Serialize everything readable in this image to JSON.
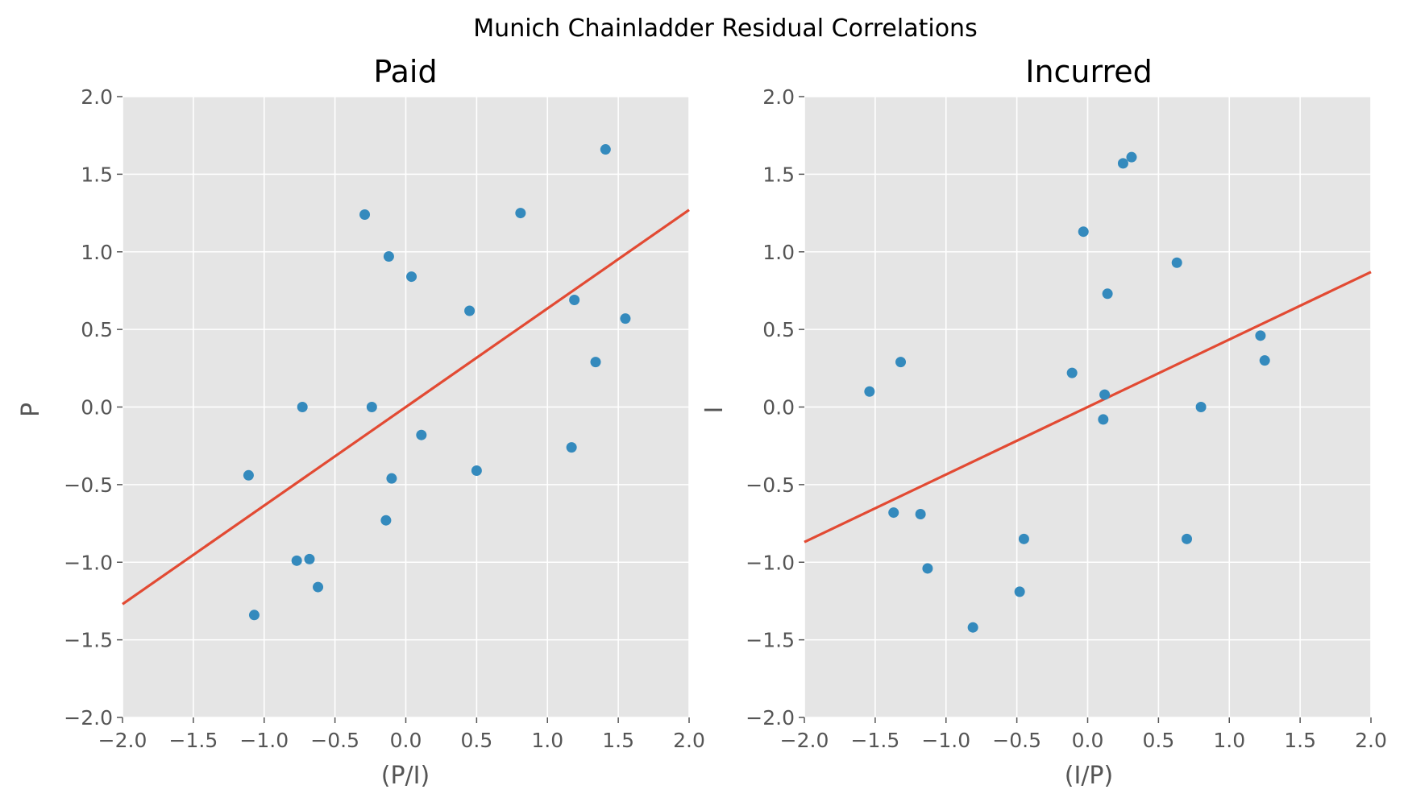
{
  "figure": {
    "title": "Munich Chainladder Residual Correlations"
  },
  "style": {
    "axes_bg": "#E5E5E5",
    "grid_color": "#FFFFFF",
    "point_color": "#348ABD",
    "line_color": "#E24A33",
    "tick_color": "#555555"
  },
  "chart_data": [
    {
      "type": "scatter",
      "title": "Paid",
      "xlabel": "(P/I)",
      "ylabel": "P",
      "xlim": [
        -2.0,
        2.0
      ],
      "ylim": [
        -2.0,
        2.0
      ],
      "grid": true,
      "xticks": [
        "−2.0",
        "−1.5",
        "−1.0",
        "−0.5",
        "0.0",
        "0.5",
        "1.0",
        "1.5",
        "2.0"
      ],
      "yticks": [
        "−2.0",
        "−1.5",
        "−1.0",
        "−0.5",
        "0.0",
        "0.5",
        "1.0",
        "1.5",
        "2.0"
      ],
      "points": [
        {
          "x": 1.41,
          "y": 1.66
        },
        {
          "x": -0.29,
          "y": 1.24
        },
        {
          "x": 0.81,
          "y": 1.25
        },
        {
          "x": -0.12,
          "y": 0.97
        },
        {
          "x": 0.04,
          "y": 0.84
        },
        {
          "x": 0.45,
          "y": 0.62
        },
        {
          "x": 1.19,
          "y": 0.69
        },
        {
          "x": 1.55,
          "y": 0.57
        },
        {
          "x": 1.34,
          "y": 0.29
        },
        {
          "x": -0.73,
          "y": 0.0
        },
        {
          "x": -0.24,
          "y": 0.0
        },
        {
          "x": 0.11,
          "y": -0.18
        },
        {
          "x": 1.17,
          "y": -0.26
        },
        {
          "x": -1.11,
          "y": -0.44
        },
        {
          "x": -0.1,
          "y": -0.46
        },
        {
          "x": 0.5,
          "y": -0.41
        },
        {
          "x": -0.14,
          "y": -0.73
        },
        {
          "x": -0.77,
          "y": -0.99
        },
        {
          "x": -0.68,
          "y": -0.98
        },
        {
          "x": -0.62,
          "y": -1.16
        },
        {
          "x": -1.07,
          "y": -1.34
        }
      ],
      "fit_line": {
        "slope": 0.635,
        "intercept": 0.0
      }
    },
    {
      "type": "scatter",
      "title": "Incurred",
      "xlabel": "(I/P)",
      "ylabel": "I",
      "xlim": [
        -2.0,
        2.0
      ],
      "ylim": [
        -2.0,
        2.0
      ],
      "grid": true,
      "xticks": [
        "−2.0",
        "−1.5",
        "−1.0",
        "−0.5",
        "0.0",
        "0.5",
        "1.0",
        "1.5",
        "2.0"
      ],
      "yticks": [
        "−2.0",
        "−1.5",
        "−1.0",
        "−0.5",
        "0.0",
        "0.5",
        "1.0",
        "1.5",
        "2.0"
      ],
      "points": [
        {
          "x": 0.31,
          "y": 1.61
        },
        {
          "x": 0.25,
          "y": 1.57
        },
        {
          "x": -0.03,
          "y": 1.13
        },
        {
          "x": 0.63,
          "y": 0.93
        },
        {
          "x": 0.14,
          "y": 0.73
        },
        {
          "x": -1.32,
          "y": 0.29
        },
        {
          "x": -1.54,
          "y": 0.1
        },
        {
          "x": -0.11,
          "y": 0.22
        },
        {
          "x": 0.12,
          "y": 0.08
        },
        {
          "x": 0.11,
          "y": -0.08
        },
        {
          "x": 0.8,
          "y": 0.0
        },
        {
          "x": 1.22,
          "y": 0.46
        },
        {
          "x": 1.25,
          "y": 0.3
        },
        {
          "x": -1.37,
          "y": -0.68
        },
        {
          "x": -1.18,
          "y": -0.69
        },
        {
          "x": -0.45,
          "y": -0.85
        },
        {
          "x": 0.7,
          "y": -0.85
        },
        {
          "x": -1.13,
          "y": -1.04
        },
        {
          "x": -0.48,
          "y": -1.19
        },
        {
          "x": -0.81,
          "y": -1.42
        }
      ],
      "fit_line": {
        "slope": 0.435,
        "intercept": 0.0
      }
    }
  ]
}
